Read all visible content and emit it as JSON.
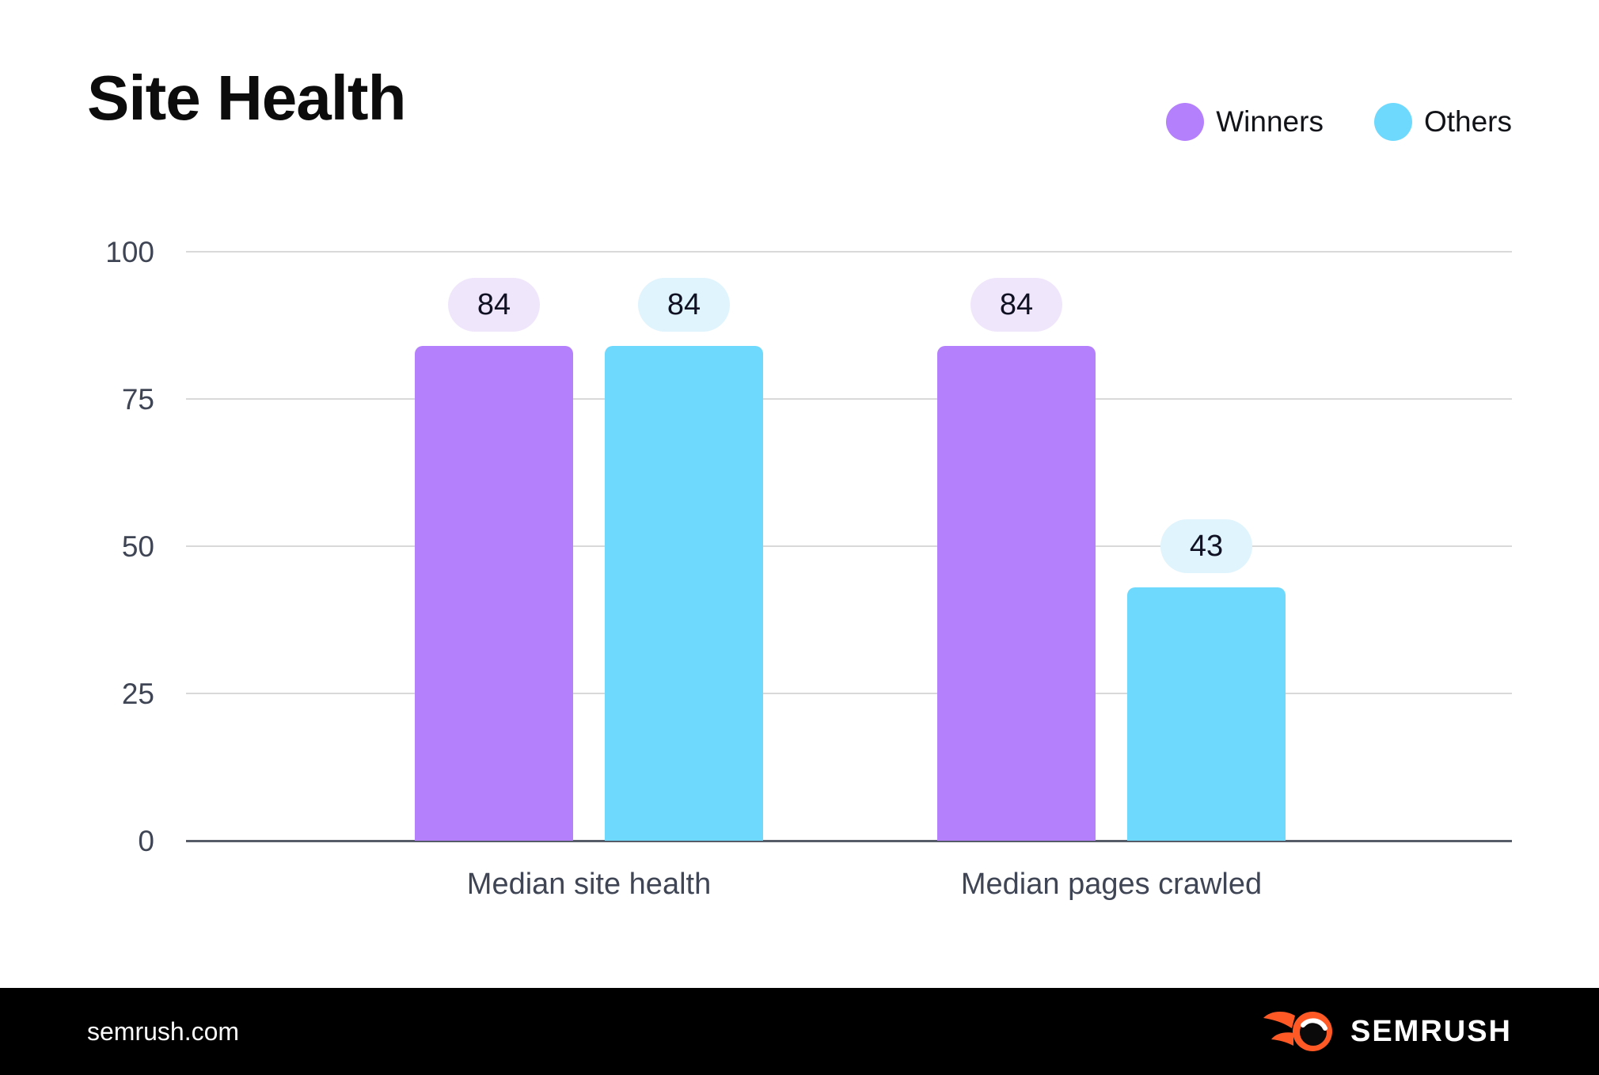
{
  "header": {
    "title": "Site Health"
  },
  "legend": [
    {
      "label": "Winners",
      "color": "#b480fb"
    },
    {
      "label": "Others",
      "color": "#6ed9fd"
    }
  ],
  "chart_data": {
    "type": "bar",
    "title": "Site Health",
    "categories": [
      "Median site health",
      "Median pages crawled"
    ],
    "series": [
      {
        "name": "Winners",
        "color": "#b480fb",
        "badge_bg": "#f0e6fc",
        "values": [
          84,
          84
        ]
      },
      {
        "name": "Others",
        "color": "#6ed9fd",
        "badge_bg": "#dff4fd",
        "values": [
          84,
          43
        ]
      }
    ],
    "yticks": [
      0,
      25,
      50,
      75,
      100
    ],
    "ylim": [
      0,
      100
    ],
    "xlabel": "",
    "ylabel": "",
    "grid": "horizontal",
    "legend_position": "top-right",
    "colors": {
      "gridline": "#d9d9d9",
      "axis_line": "#575c69",
      "tick_text": "#3f4554",
      "badge_text": "#101223"
    }
  },
  "footer": {
    "site": "semrush.com",
    "brand": "SEMRUSH",
    "logo_icon": "semrush-flame-icon",
    "logo_orange": "#ff5a26"
  }
}
